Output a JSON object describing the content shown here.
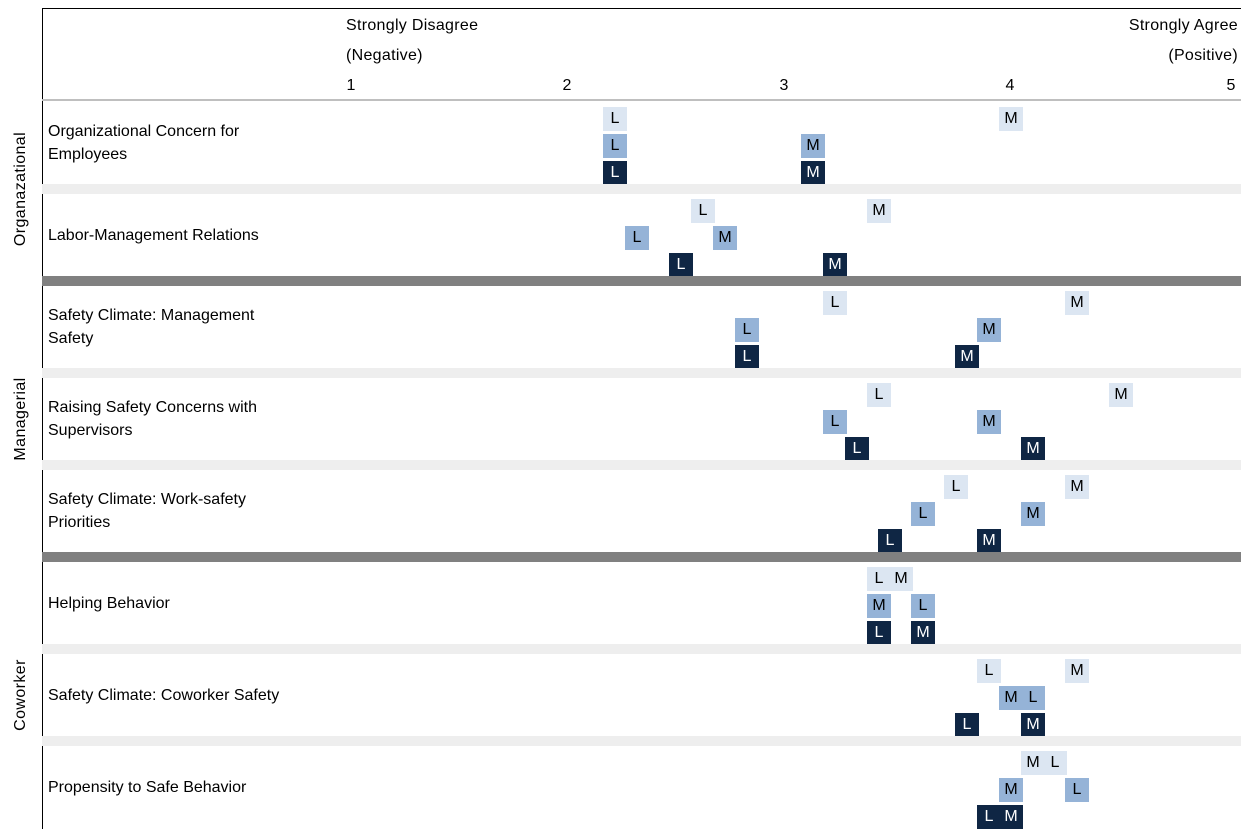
{
  "chart_data": {
    "type": "scatter",
    "scale": {
      "min": 1,
      "max": 5,
      "ticks": [
        "1",
        "2",
        "3",
        "4",
        "5"
      ],
      "low_label_line1": "Strongly Disagree",
      "low_label_line2": "(Negative)",
      "high_label_line1": "Strongly Agree",
      "high_label_line2": "(Positive)"
    },
    "series_colors": [
      "#dce6f2",
      "#95b3d7",
      "#0f2644"
    ],
    "groups": [
      {
        "label": "Organazational",
        "rows": [
          {
            "label": "Organizational Concern for\nEmployees",
            "values": [
              {
                "L": 2.2,
                "M": 4.0
              },
              {
                "L": 2.2,
                "M": 3.1
              },
              {
                "L": 2.2,
                "M": 3.1
              }
            ]
          },
          {
            "label": "Labor-Management Relations",
            "values": [
              {
                "L": 2.6,
                "M": 3.4
              },
              {
                "L": 2.3,
                "M": 2.7
              },
              {
                "L": 2.5,
                "M": 3.2
              }
            ]
          }
        ]
      },
      {
        "label": "Managerial",
        "rows": [
          {
            "label": "Safety Climate: Management\nSafety",
            "values": [
              {
                "L": 3.2,
                "M": 4.3
              },
              {
                "L": 2.8,
                "M": 3.9
              },
              {
                "L": 2.8,
                "M": 3.8
              }
            ]
          },
          {
            "label": "Raising Safety Concerns with\nSupervisors",
            "values": [
              {
                "L": 3.4,
                "M": 4.5
              },
              {
                "L": 3.2,
                "M": 3.9
              },
              {
                "L": 3.3,
                "M": 4.1
              }
            ]
          },
          {
            "label": "Safety Climate: Work-safety\nPriorities",
            "values": [
              {
                "L": 3.75,
                "M": 4.3
              },
              {
                "L": 3.6,
                "M": 4.1
              },
              {
                "L": 3.45,
                "M": 3.9
              }
            ]
          }
        ]
      },
      {
        "label": "Coworker",
        "rows": [
          {
            "label": "Helping Behavior",
            "values": [
              {
                "L": 3.4,
                "M": 3.5
              },
              {
                "L": 3.6,
                "M": 3.4
              },
              {
                "L": 3.4,
                "M": 3.6
              }
            ]
          },
          {
            "label": "Safety Climate: Coworker Safety",
            "values": [
              {
                "L": 3.9,
                "M": 4.3
              },
              {
                "L": 4.1,
                "M": 4.0
              },
              {
                "L": 3.8,
                "M": 4.1
              }
            ]
          },
          {
            "label": "Propensity to Safe Behavior",
            "values": [
              {
                "L": 4.2,
                "M": 4.1
              },
              {
                "L": 4.3,
                "M": 4.0
              },
              {
                "L": 3.9,
                "M": 4.0
              }
            ]
          }
        ]
      }
    ]
  }
}
